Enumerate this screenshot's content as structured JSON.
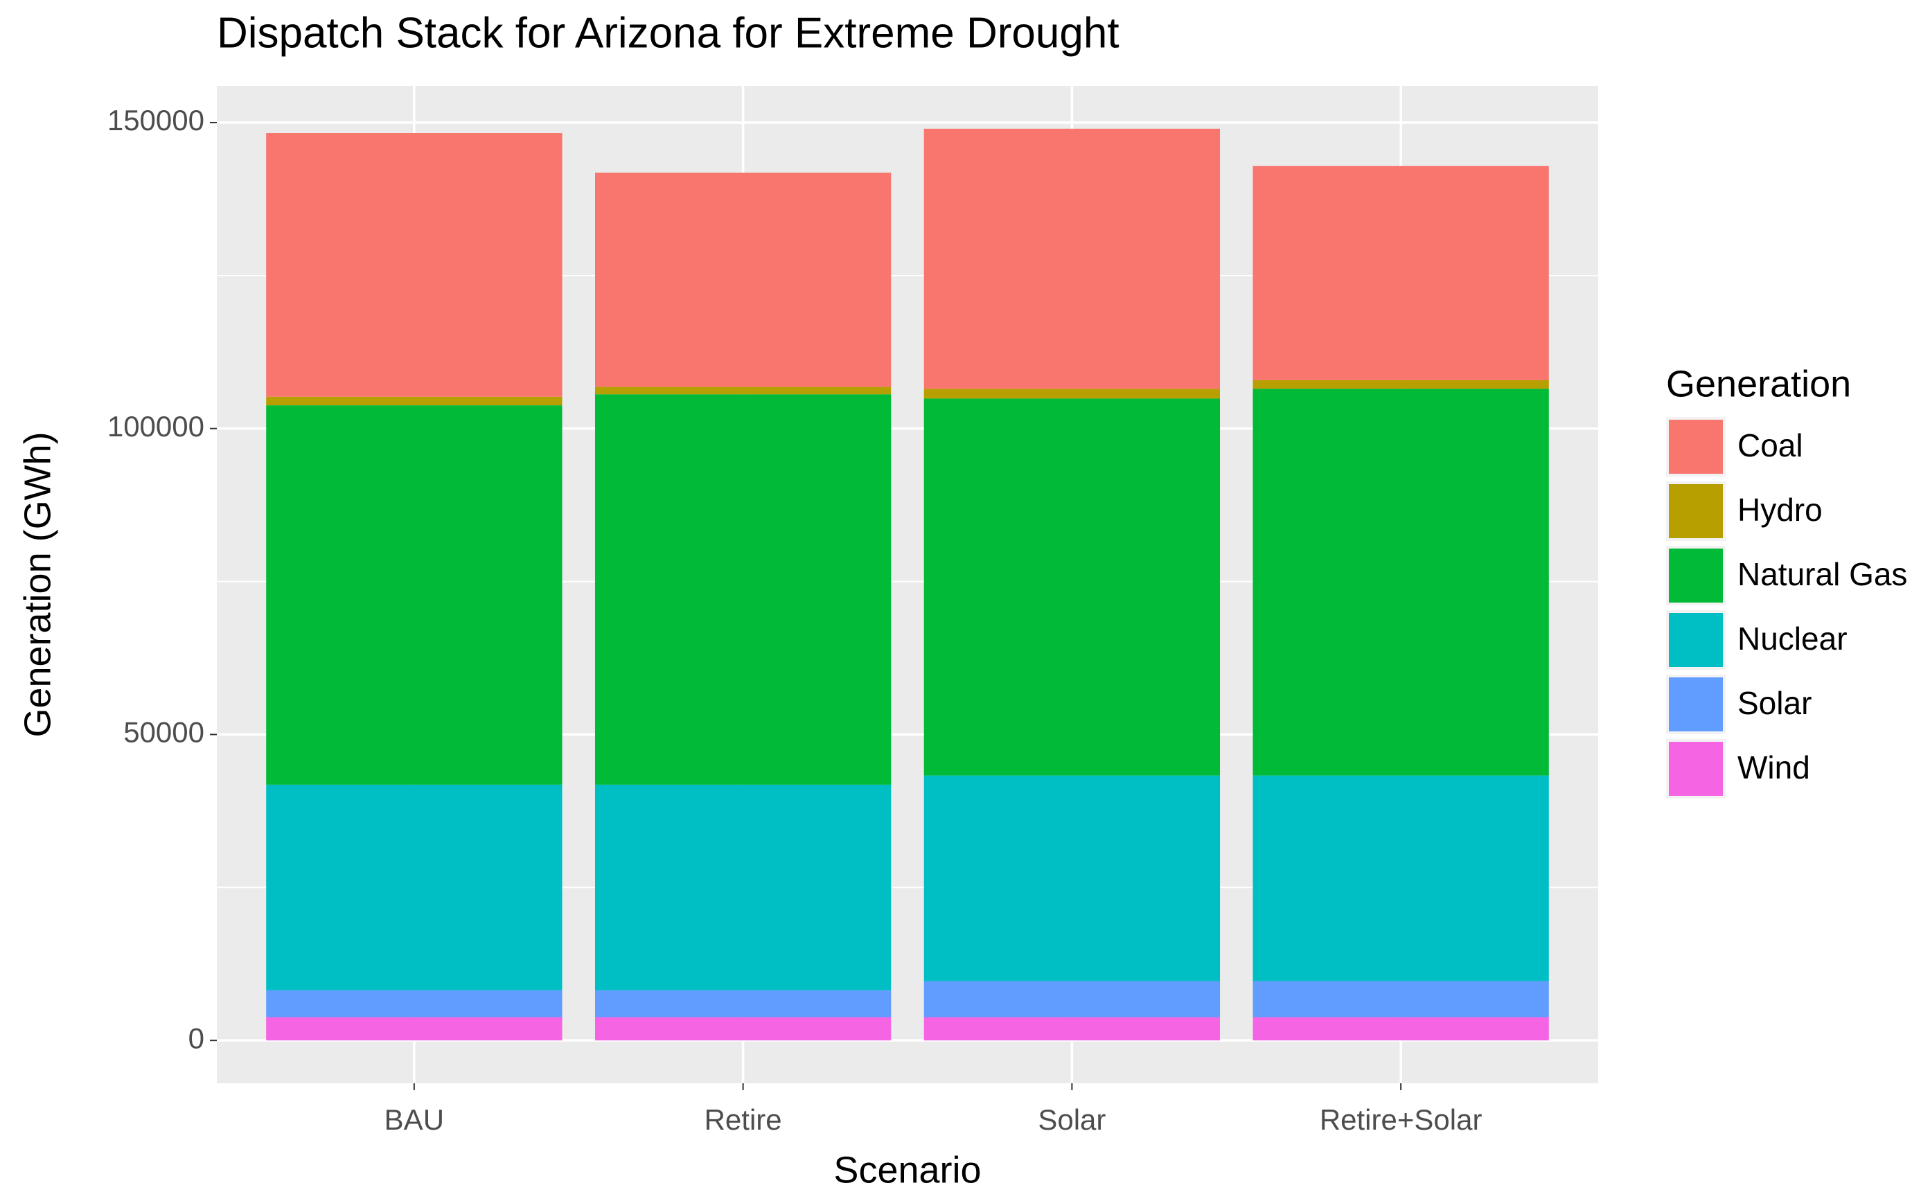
{
  "chart_data": {
    "type": "stacked-bar",
    "title": "Dispatch Stack for Arizona for Extreme Drought",
    "x_label": "Scenario",
    "y_label": "Generation (GWh)",
    "legend_title": "Generation",
    "legend_position": "right",
    "grid": true,
    "categories": [
      "BAU",
      "Retire",
      "Solar",
      "Retire+Solar"
    ],
    "series": [
      {
        "name": "Coal",
        "color": "#f8766d",
        "values": [
          43100,
          35000,
          42500,
          35000
        ]
      },
      {
        "name": "Hydro",
        "color": "#b79f00",
        "values": [
          1400,
          1200,
          1600,
          1400
        ]
      },
      {
        "name": "Natural Gas",
        "color": "#00ba38",
        "values": [
          62000,
          63800,
          61600,
          63200
        ]
      },
      {
        "name": "Nuclear",
        "color": "#00bfc4",
        "values": [
          33600,
          33600,
          33600,
          33600
        ]
      },
      {
        "name": "Solar",
        "color": "#619cff",
        "values": [
          4400,
          4400,
          5900,
          5900
        ]
      },
      {
        "name": "Wind",
        "color": "#f564e3",
        "values": [
          3800,
          3800,
          3800,
          3800
        ]
      }
    ],
    "ylim": [
      -7000,
      156000
    ],
    "yticks": [
      0,
      50000,
      100000,
      150000
    ]
  }
}
